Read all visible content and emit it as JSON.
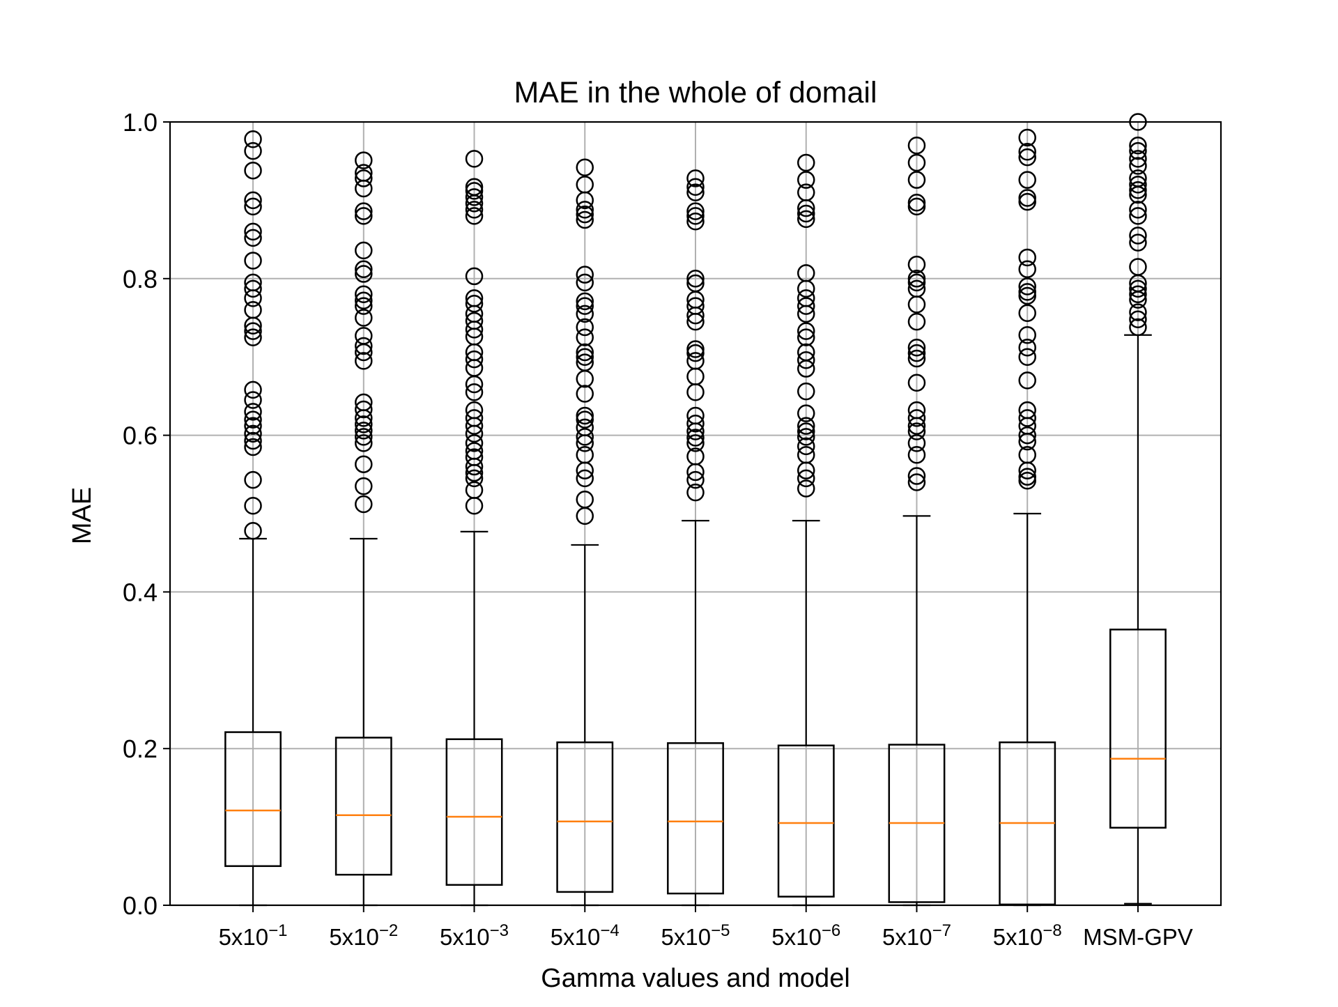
{
  "chart_data": {
    "type": "boxplot",
    "title": "MAE in the whole of domail",
    "xlabel": "Gamma values and model",
    "ylabel": "MAE",
    "ylim": [
      0.0,
      1.0
    ],
    "yticks": [
      "0.0",
      "0.2",
      "0.4",
      "0.6",
      "0.8",
      "1.0"
    ],
    "grid": true,
    "colors": {
      "box": "#000000",
      "median": "#ff7f0e",
      "grid": "#b0b0b0",
      "flier": "#000000"
    },
    "categories": [
      {
        "base": "5x10",
        "exp": "−1"
      },
      {
        "base": "5x10",
        "exp": "−2"
      },
      {
        "base": "5x10",
        "exp": "−3"
      },
      {
        "base": "5x10",
        "exp": "−4"
      },
      {
        "base": "5x10",
        "exp": "−5"
      },
      {
        "base": "5x10",
        "exp": "−6"
      },
      {
        "base": "5x10",
        "exp": "−7"
      },
      {
        "base": "5x10",
        "exp": "−8"
      },
      {
        "base": "MSM-GPV",
        "exp": ""
      }
    ],
    "boxes": [
      {
        "whislo": 0.0,
        "q1": 0.05,
        "med": 0.121,
        "q3": 0.221,
        "whishi": 0.468,
        "fliers": [
          0.478,
          0.51,
          0.543,
          0.585,
          0.593,
          0.602,
          0.612,
          0.62,
          0.63,
          0.645,
          0.658,
          0.725,
          0.733,
          0.74,
          0.76,
          0.775,
          0.787,
          0.795,
          0.823,
          0.852,
          0.86,
          0.892,
          0.9,
          0.938,
          0.963,
          0.978
        ]
      },
      {
        "whislo": 0.0,
        "q1": 0.039,
        "med": 0.115,
        "q3": 0.214,
        "whishi": 0.468,
        "fliers": [
          0.512,
          0.535,
          0.563,
          0.59,
          0.598,
          0.606,
          0.614,
          0.622,
          0.633,
          0.642,
          0.695,
          0.706,
          0.714,
          0.727,
          0.75,
          0.765,
          0.772,
          0.78,
          0.806,
          0.812,
          0.836,
          0.88,
          0.886,
          0.915,
          0.928,
          0.935,
          0.951
        ]
      },
      {
        "whislo": 0.0,
        "q1": 0.026,
        "med": 0.113,
        "q3": 0.212,
        "whishi": 0.477,
        "fliers": [
          0.51,
          0.53,
          0.545,
          0.552,
          0.56,
          0.572,
          0.58,
          0.59,
          0.602,
          0.612,
          0.622,
          0.632,
          0.655,
          0.665,
          0.686,
          0.697,
          0.706,
          0.726,
          0.735,
          0.746,
          0.755,
          0.768,
          0.775,
          0.803,
          0.88,
          0.888,
          0.896,
          0.904,
          0.912,
          0.917,
          0.953
        ]
      },
      {
        "whislo": 0.0,
        "q1": 0.017,
        "med": 0.107,
        "q3": 0.208,
        "whishi": 0.46,
        "fliers": [
          0.497,
          0.518,
          0.545,
          0.555,
          0.575,
          0.59,
          0.598,
          0.61,
          0.62,
          0.625,
          0.653,
          0.672,
          0.693,
          0.7,
          0.706,
          0.725,
          0.738,
          0.755,
          0.765,
          0.771,
          0.795,
          0.805,
          0.875,
          0.882,
          0.888,
          0.9,
          0.92,
          0.942
        ]
      },
      {
        "whislo": 0.0,
        "q1": 0.015,
        "med": 0.107,
        "q3": 0.207,
        "whishi": 0.491,
        "fliers": [
          0.527,
          0.543,
          0.553,
          0.573,
          0.59,
          0.597,
          0.605,
          0.615,
          0.625,
          0.655,
          0.675,
          0.695,
          0.705,
          0.71,
          0.745,
          0.753,
          0.765,
          0.773,
          0.794,
          0.8,
          0.873,
          0.88,
          0.886,
          0.91,
          0.917,
          0.928
        ]
      },
      {
        "whislo": 0.0,
        "q1": 0.011,
        "med": 0.105,
        "q3": 0.204,
        "whishi": 0.491,
        "fliers": [
          0.532,
          0.545,
          0.555,
          0.575,
          0.586,
          0.598,
          0.605,
          0.612,
          0.628,
          0.656,
          0.685,
          0.696,
          0.706,
          0.725,
          0.733,
          0.755,
          0.765,
          0.775,
          0.787,
          0.807,
          0.876,
          0.883,
          0.89,
          0.91,
          0.926,
          0.948
        ]
      },
      {
        "whislo": 0.0,
        "q1": 0.004,
        "med": 0.105,
        "q3": 0.205,
        "whishi": 0.497,
        "fliers": [
          0.54,
          0.548,
          0.575,
          0.59,
          0.605,
          0.612,
          0.622,
          0.632,
          0.667,
          0.698,
          0.705,
          0.712,
          0.745,
          0.767,
          0.787,
          0.795,
          0.8,
          0.818,
          0.892,
          0.897,
          0.926,
          0.948,
          0.97
        ]
      },
      {
        "whislo": 0.0,
        "q1": 0.001,
        "med": 0.105,
        "q3": 0.208,
        "whishi": 0.5,
        "fliers": [
          0.542,
          0.547,
          0.555,
          0.575,
          0.592,
          0.6,
          0.612,
          0.622,
          0.632,
          0.67,
          0.7,
          0.712,
          0.728,
          0.756,
          0.778,
          0.783,
          0.79,
          0.812,
          0.827,
          0.898,
          0.903,
          0.926,
          0.955,
          0.962,
          0.98
        ]
      },
      {
        "whislo": 0.002,
        "q1": 0.099,
        "med": 0.187,
        "q3": 0.352,
        "whishi": 0.728,
        "fliers": [
          0.738,
          0.748,
          0.757,
          0.773,
          0.78,
          0.787,
          0.794,
          0.815,
          0.846,
          0.855,
          0.88,
          0.888,
          0.907,
          0.913,
          0.92,
          0.928,
          0.944,
          0.953,
          0.963,
          0.97,
          1.0
        ]
      }
    ]
  }
}
